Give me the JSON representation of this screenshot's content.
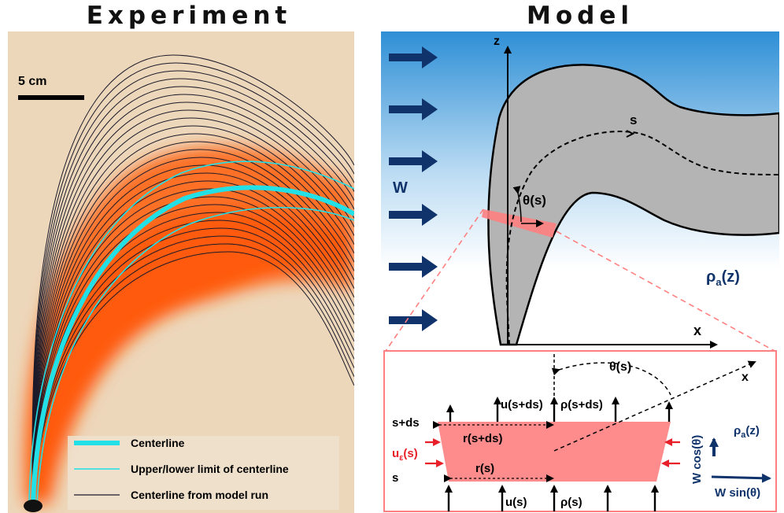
{
  "titles": {
    "experiment": "Experiment",
    "model": "Model"
  },
  "experiment": {
    "scale_bar": "5 cm",
    "legend": {
      "centerline": "Centerline",
      "limits": "Upper/lower limit of centerline",
      "model_runs": "Centerline from model run"
    }
  },
  "model": {
    "axis_z": "z",
    "axis_x": "x",
    "wind": "W",
    "s": "s",
    "theta": "θ(s)",
    "rho_a": "ρ",
    "rho_a_sub": "a",
    "rho_a_arg": "(z)"
  },
  "detail": {
    "theta": "θ(s)",
    "x": "x",
    "s_ds": "s+ds",
    "s": "s",
    "u_e": "u",
    "u_e_sub": "ε",
    "u_e_arg": "(s)",
    "u_top": "u(s+ds)",
    "rho_top": "ρ(s+ds)",
    "r_top": "r(s+ds)",
    "r_bottom": "r(s)",
    "u_bottom": "u(s)",
    "rho_bottom": "ρ(s)",
    "rho_a": "ρ",
    "rho_a_sub": "a",
    "rho_a_arg": "(z)",
    "w_cos": "W cos(θ)",
    "w_sin": "W sin(θ)"
  },
  "colors": {
    "plume_orange": "#ff6a1a",
    "centerline_cyan": "#22e0e6",
    "navy": "#10336b",
    "red_arrow": "#e8202a",
    "detail_fill": "#ff8c8c",
    "sky_top": "#2e8fd6"
  }
}
